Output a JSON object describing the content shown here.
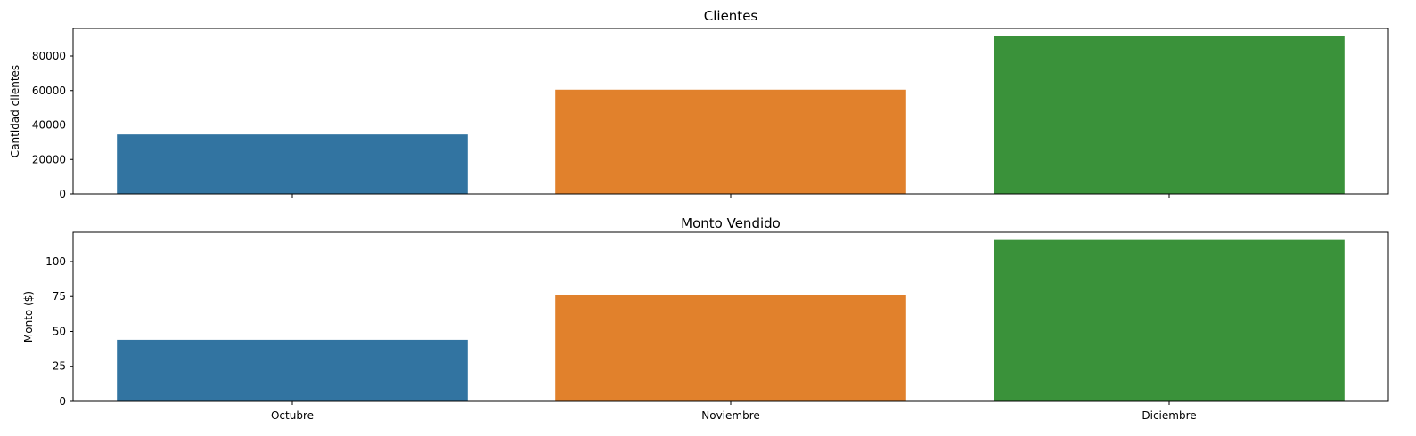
{
  "chart_data": [
    {
      "type": "bar",
      "title": "Clientes",
      "categories": [
        "Octubre",
        "Noviembre",
        "Diciembre"
      ],
      "values": [
        34500,
        60500,
        91500
      ],
      "colors": [
        "#3274a1",
        "#e1812c",
        "#3a923a"
      ],
      "ylabel": "Cantidad clientes",
      "xlabel": "",
      "ylim": [
        0,
        96000
      ],
      "yticks": [
        0,
        20000,
        40000,
        60000,
        80000
      ],
      "show_x_tick_labels": false,
      "grid": false
    },
    {
      "type": "bar",
      "title": "Monto Vendido",
      "categories": [
        "Octubre",
        "Noviembre",
        "Diciembre"
      ],
      "values": [
        44,
        76,
        115.5
      ],
      "colors": [
        "#3274a1",
        "#e1812c",
        "#3a923a"
      ],
      "ylabel": "Monto ($)",
      "xlabel": "",
      "ylim": [
        0,
        121
      ],
      "yticks": [
        0,
        25,
        50,
        75,
        100
      ],
      "show_x_tick_labels": true,
      "grid": false
    }
  ]
}
